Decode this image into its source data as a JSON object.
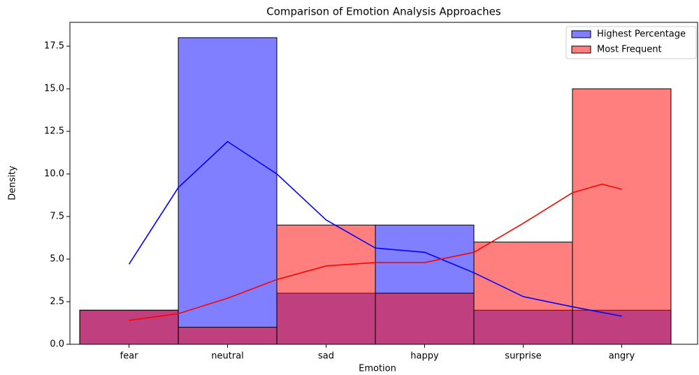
{
  "chart_data": {
    "type": "hist",
    "title": "Comparison of Emotion Analysis Approaches",
    "xlabel": "Emotion",
    "ylabel": "Density",
    "categories": [
      "fear",
      "neutral",
      "sad",
      "happy",
      "surprise",
      "angry"
    ],
    "series": [
      {
        "name": "Highest Percentage",
        "color": "#0000ff",
        "values": [
          2,
          18,
          3,
          7,
          2,
          2
        ],
        "kde": {
          "x": [
            0,
            0.5,
            1,
            1.5,
            2,
            2.5,
            3,
            3.5,
            4,
            4.5,
            5
          ],
          "values": [
            4.7,
            9.2,
            11.9,
            10.0,
            7.3,
            5.65,
            5.4,
            4.2,
            2.8,
            2.2,
            1.65
          ]
        }
      },
      {
        "name": "Most Frequent",
        "color": "#ff0000",
        "values": [
          2,
          1,
          7,
          3,
          6,
          15
        ],
        "kde": {
          "x": [
            0,
            0.5,
            1,
            1.5,
            2,
            2.5,
            3,
            3.5,
            4,
            4.5,
            4.8,
            5
          ],
          "values": [
            1.4,
            1.8,
            2.7,
            3.8,
            4.6,
            4.8,
            4.8,
            5.4,
            7.1,
            8.9,
            9.4,
            9.1
          ]
        }
      }
    ],
    "xlim": [
      -0.6,
      5.77
    ],
    "ylim": [
      0,
      18.9
    ],
    "yticks": [
      {
        "value": 0,
        "label": "0.0"
      },
      {
        "value": 2.5,
        "label": "2.5"
      },
      {
        "value": 5,
        "label": "5.0"
      },
      {
        "value": 7.5,
        "label": "7.5"
      },
      {
        "value": 10,
        "label": "10.0"
      },
      {
        "value": 12.5,
        "label": "12.5"
      },
      {
        "value": 15,
        "label": "15.0"
      },
      {
        "value": 17.5,
        "label": "17.5"
      }
    ],
    "legend": "upper right",
    "grid": false
  }
}
